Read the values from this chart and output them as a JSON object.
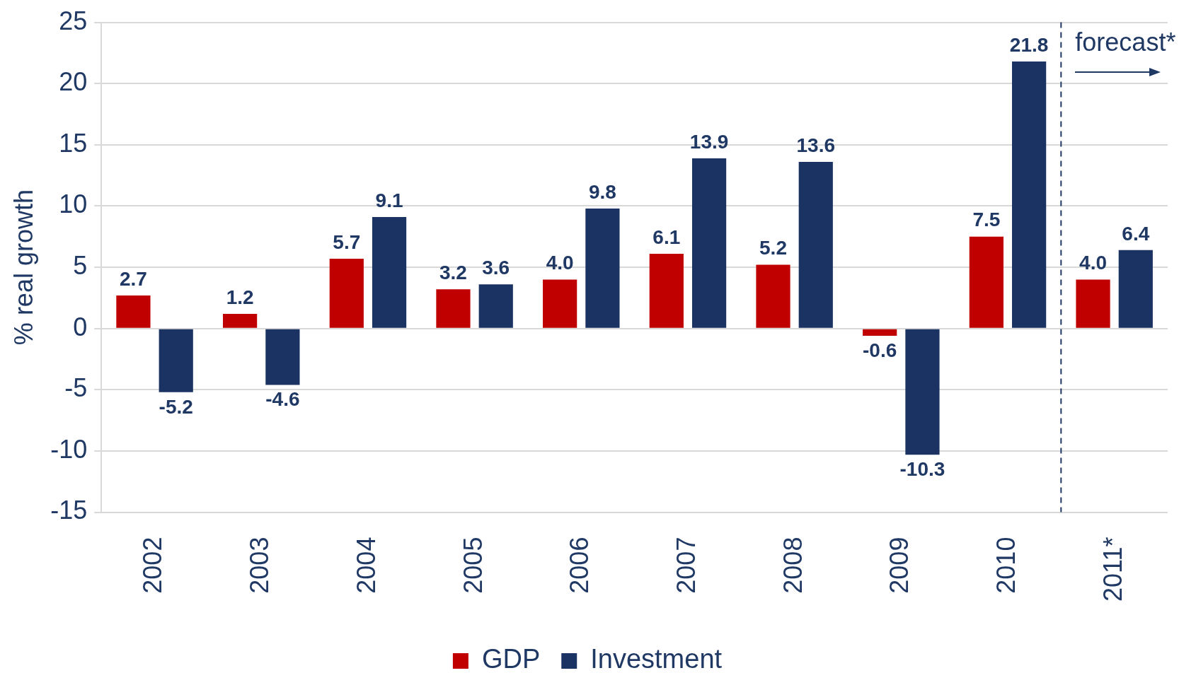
{
  "chart_data": {
    "type": "bar",
    "ylabel": "% real growth",
    "categories": [
      "2002",
      "2003",
      "2004",
      "2005",
      "2006",
      "2007",
      "2008",
      "2009",
      "2010",
      "2011*"
    ],
    "series": [
      {
        "name": "GDP",
        "color": "#c00000",
        "values": [
          2.7,
          1.2,
          5.7,
          3.2,
          4.0,
          6.1,
          5.2,
          -0.6,
          7.5,
          4.0
        ],
        "value_labels": [
          "2.7",
          "1.2",
          "5.7",
          "3.2",
          "4.0",
          "6.1",
          "5.2",
          "-0.6",
          "7.5",
          "4.0"
        ]
      },
      {
        "name": "Investment",
        "color": "#1b3363",
        "values": [
          -5.2,
          -4.6,
          9.1,
          3.6,
          9.8,
          13.9,
          13.6,
          -10.3,
          21.8,
          6.4
        ],
        "value_labels": [
          "-5.2",
          "-4.6",
          "9.1",
          "3.6",
          "9.8",
          "13.9",
          "13.6",
          "-10.3",
          "21.8",
          "6.4"
        ]
      }
    ],
    "ylim": [
      -15,
      25
    ],
    "yticks": [
      -15,
      -10,
      -5,
      0,
      5,
      10,
      15,
      20,
      25
    ],
    "grid": "y",
    "legend": "bottom",
    "ref_lines": [
      {
        "axis": "x",
        "value": "2011*",
        "label": "forecast*",
        "line_style": "dashed",
        "color": "#1f3864"
      }
    ]
  }
}
